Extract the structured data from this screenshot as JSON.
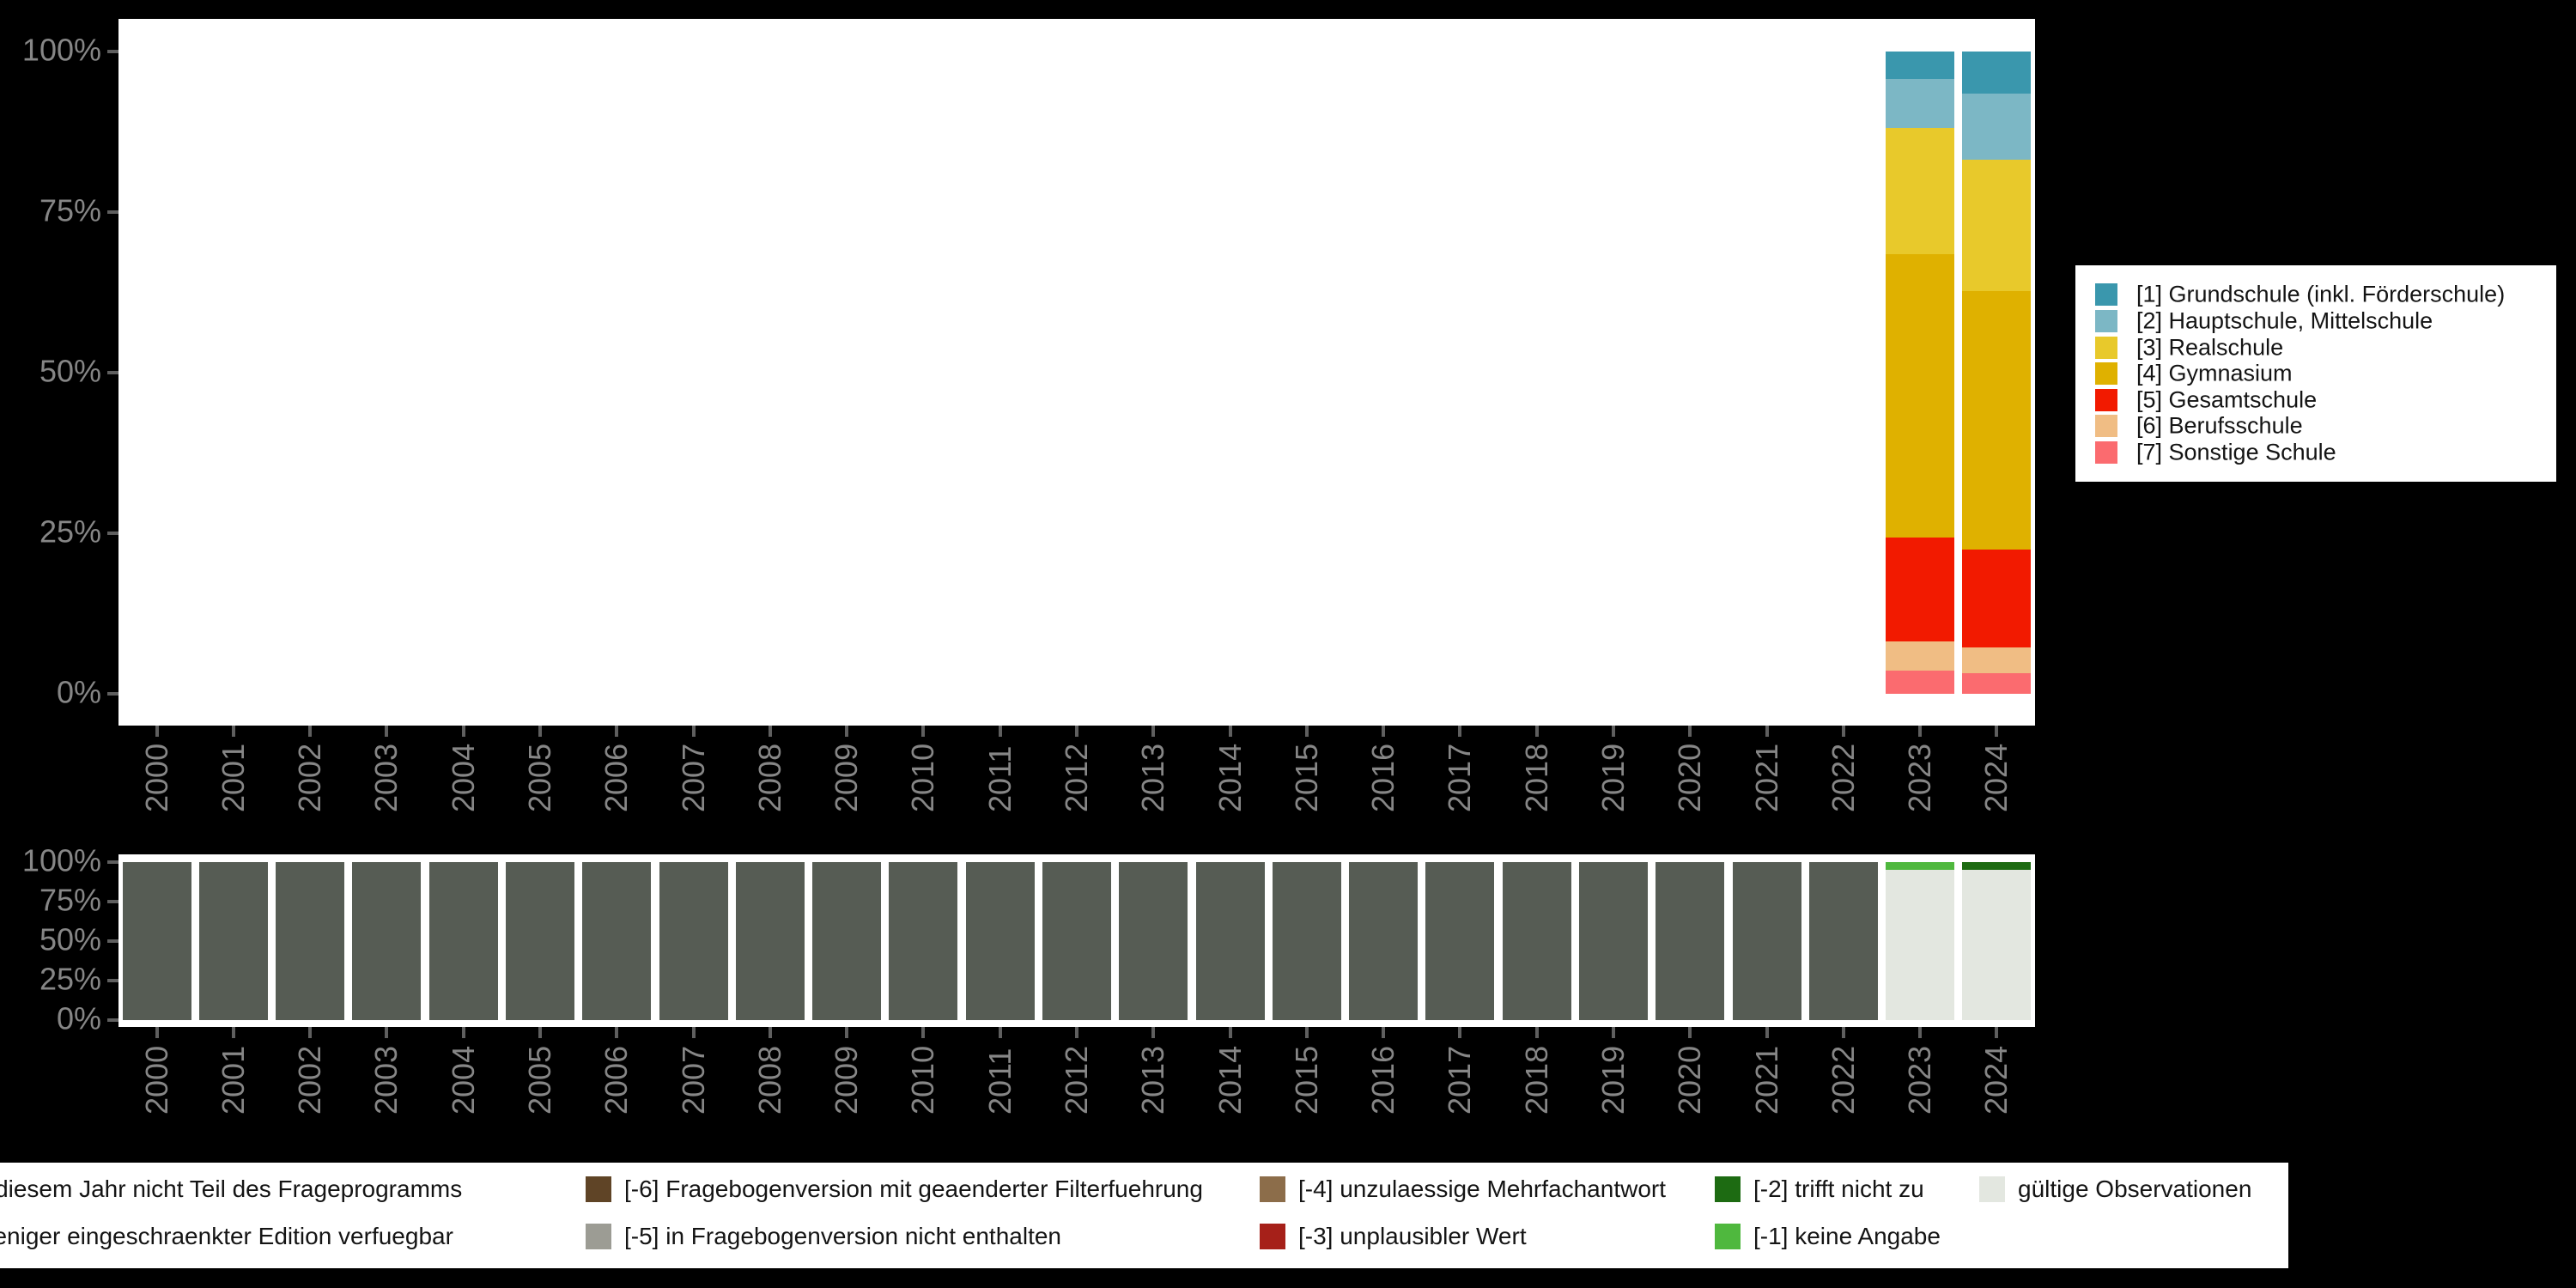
{
  "figure": {
    "background": "#000000",
    "panel_background": "#ffffff",
    "axis_text_color": "#868686",
    "tick_color": "#5f5f5f"
  },
  "axes": {
    "y_tick_labels": [
      "100%",
      "75%",
      "50%",
      "25%",
      "0%"
    ],
    "x_tick_labels": [
      "2000",
      "2001",
      "2002",
      "2003",
      "2004",
      "2005",
      "2006",
      "2007",
      "2008",
      "2009",
      "2010",
      "2011",
      "2012",
      "2013",
      "2014",
      "2015",
      "2016",
      "2017",
      "2018",
      "2019",
      "2020",
      "2021",
      "2022",
      "2023",
      "2024"
    ]
  },
  "top_legend": {
    "items": [
      {
        "label": "[1] Grundschule (inkl. Förderschule)",
        "color": "#3a97ad"
      },
      {
        "label": "[2] Hauptschule, Mittelschule",
        "color": "#7cb7c5"
      },
      {
        "label": "[3] Realschule",
        "color": "#e8c92b"
      },
      {
        "label": "[4] Gymnasium",
        "color": "#dfb100"
      },
      {
        "label": "[5] Gesamtschule",
        "color": "#f21a00"
      },
      {
        "label": "[6] Berufsschule",
        "color": "#f0bd84"
      },
      {
        "label": "[7] Sonstige Schule",
        "color": "#fb6b6f"
      }
    ]
  },
  "bottom_legend": {
    "rows": [
      [
        {
          "label": "age in diesem Jahr nicht Teil des Frageprogramms",
          "color": null
        },
        {
          "label": "[-6] Fragebogenversion mit geaenderter Filterfuehrung",
          "color": "#5f4426"
        },
        {
          "label": "[-4] unzulaessige Mehrfachantwort",
          "color": "#8c6d4a"
        },
        {
          "label": "[-2] trifft nicht zu",
          "color": "#1d6b12"
        },
        {
          "label": "gültige Observationen",
          "color": "#e3e7e0"
        }
      ],
      [
        {
          "label": "ur in weniger eingeschraenkter Edition verfuegbar",
          "color": null
        },
        {
          "label": "[-5] in Fragebogenversion nicht enthalten",
          "color": "#9c9c94"
        },
        {
          "label": "[-3] unplausibler Wert",
          "color": "#a62019"
        },
        {
          "label": "[-1] keine Angabe",
          "color": "#4fb83e"
        }
      ]
    ]
  },
  "chart_data": [
    {
      "id": "school-type-distribution",
      "type": "bar",
      "stacked": true,
      "unit": "percent",
      "title": "",
      "xlabel": "",
      "ylabel": "",
      "ylim": [
        0,
        100
      ],
      "y_ticks": [
        0,
        25,
        50,
        75,
        100
      ],
      "grid": false,
      "legend_position": "right",
      "x": [
        "2000",
        "2001",
        "2002",
        "2003",
        "2004",
        "2005",
        "2006",
        "2007",
        "2008",
        "2009",
        "2010",
        "2011",
        "2012",
        "2013",
        "2014",
        "2015",
        "2016",
        "2017",
        "2018",
        "2019",
        "2020",
        "2021",
        "2022",
        "2023",
        "2024"
      ],
      "stack_order": "first_series_on_top",
      "series": [
        {
          "name": "[1] Grundschule (inkl. Förderschule)",
          "color": "#3a97ad",
          "values": {
            "2023": 4.3,
            "2024": 6.6
          }
        },
        {
          "name": "[2] Hauptschule, Mittelschule",
          "color": "#7cb7c5",
          "values": {
            "2023": 7.6,
            "2024": 10.3
          }
        },
        {
          "name": "[3] Realschule",
          "color": "#e8c92b",
          "values": {
            "2023": 19.7,
            "2024": 20.4
          }
        },
        {
          "name": "[4] Gymnasium",
          "color": "#dfb100",
          "values": {
            "2023": 44.1,
            "2024": 40.3
          }
        },
        {
          "name": "[5] Gesamtschule",
          "color": "#f21a00",
          "values": {
            "2023": 16.1,
            "2024": 15.2
          }
        },
        {
          "name": "[6] Berufsschule",
          "color": "#f0bd84",
          "values": {
            "2023": 4.6,
            "2024": 4.0
          }
        },
        {
          "name": "[7] Sonstige Schule",
          "color": "#fb6b6f",
          "values": {
            "2023": 3.6,
            "2024": 3.2
          }
        }
      ]
    },
    {
      "id": "missing-values-per-year",
      "type": "bar",
      "stacked": true,
      "unit": "percent",
      "title": "",
      "xlabel": "",
      "ylabel": "",
      "ylim": [
        0,
        100
      ],
      "y_ticks": [
        0,
        25,
        50,
        75,
        100
      ],
      "grid": false,
      "legend_position": "bottom",
      "x": [
        "2000",
        "2001",
        "2002",
        "2003",
        "2004",
        "2005",
        "2006",
        "2007",
        "2008",
        "2009",
        "2010",
        "2011",
        "2012",
        "2013",
        "2014",
        "2015",
        "2016",
        "2017",
        "2018",
        "2019",
        "2020",
        "2021",
        "2022",
        "2023",
        "2024"
      ],
      "stack_order": "first_series_on_top",
      "series": [
        {
          "name": "[-1] keine Angabe",
          "color": "#4fb83e",
          "values": {
            "2023": 5
          }
        },
        {
          "name": "[-2] trifft nicht zu",
          "color": "#1d6b12",
          "values": {
            "2024": 5
          }
        },
        {
          "name": "age in diesem Jahr nicht Teil des Frageprogramms",
          "color": "#565c54",
          "values": {
            "2000": 100,
            "2001": 100,
            "2002": 100,
            "2003": 100,
            "2004": 100,
            "2005": 100,
            "2006": 100,
            "2007": 100,
            "2008": 100,
            "2009": 100,
            "2010": 100,
            "2011": 100,
            "2012": 100,
            "2013": 100,
            "2014": 100,
            "2015": 100,
            "2016": 100,
            "2017": 100,
            "2018": 100,
            "2019": 100,
            "2020": 100,
            "2021": 100,
            "2022": 100
          }
        },
        {
          "name": "gültige Observationen",
          "color": "#e3e7e0",
          "values": {
            "2023": 95,
            "2024": 95
          }
        }
      ]
    }
  ]
}
